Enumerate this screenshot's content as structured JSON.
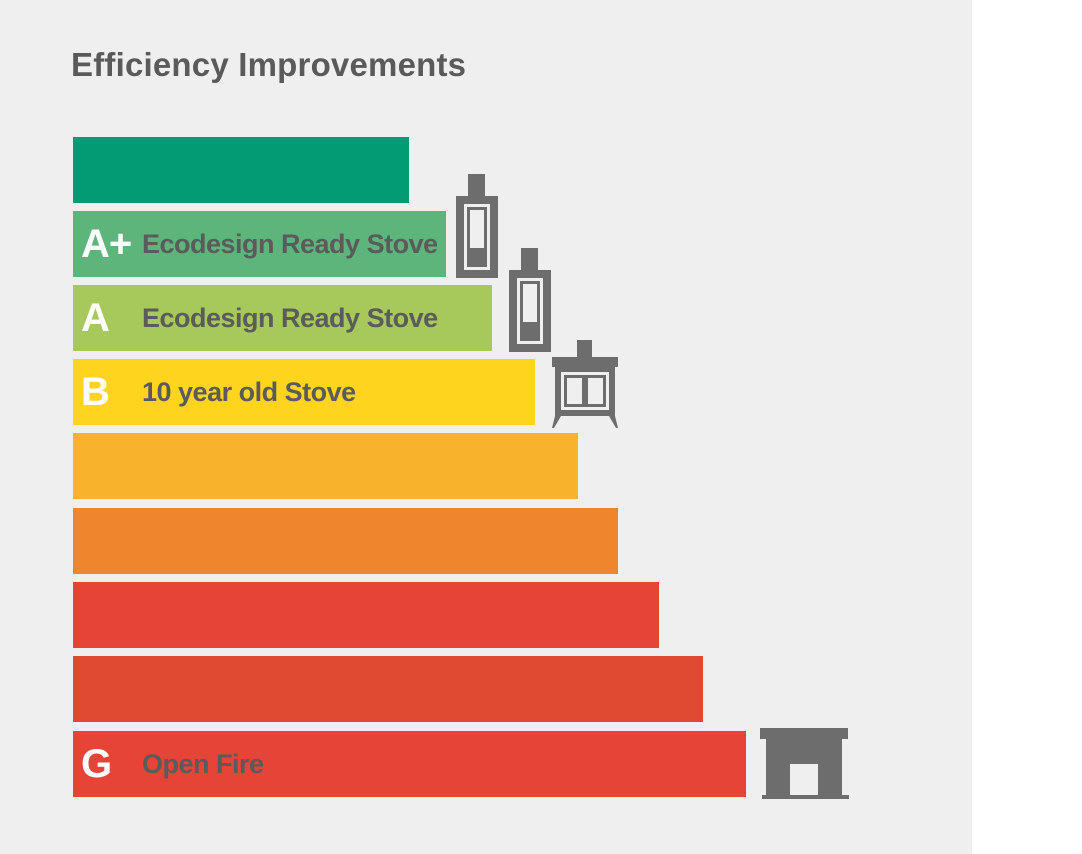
{
  "title": "Efficiency Improvements",
  "rows": [
    {
      "grade": "",
      "label": "",
      "color": "#039b74"
    },
    {
      "grade": "A+",
      "label": "Ecodesign Ready Stove",
      "color": "#5db57c"
    },
    {
      "grade": "A",
      "label": "Ecodesign Ready Stove",
      "color": "#a7c85a"
    },
    {
      "grade": "B",
      "label": "10 year old Stove",
      "color": "#fed41f"
    },
    {
      "grade": "",
      "label": "",
      "color": "#f8b22b"
    },
    {
      "grade": "",
      "label": "",
      "color": "#ef852c"
    },
    {
      "grade": "",
      "label": "",
      "color": "#e54436"
    },
    {
      "grade": "",
      "label": "",
      "color": "#e04932"
    },
    {
      "grade": "G",
      "label": "Open Fire",
      "color": "#e54436"
    }
  ],
  "icons": {
    "stove_aplus": "tall-stove-icon",
    "stove_a": "tall-stove-icon",
    "stove_b": "wood-stove-icon",
    "fire_g": "fireplace-icon",
    "icon_color": "#6d6d6d"
  }
}
